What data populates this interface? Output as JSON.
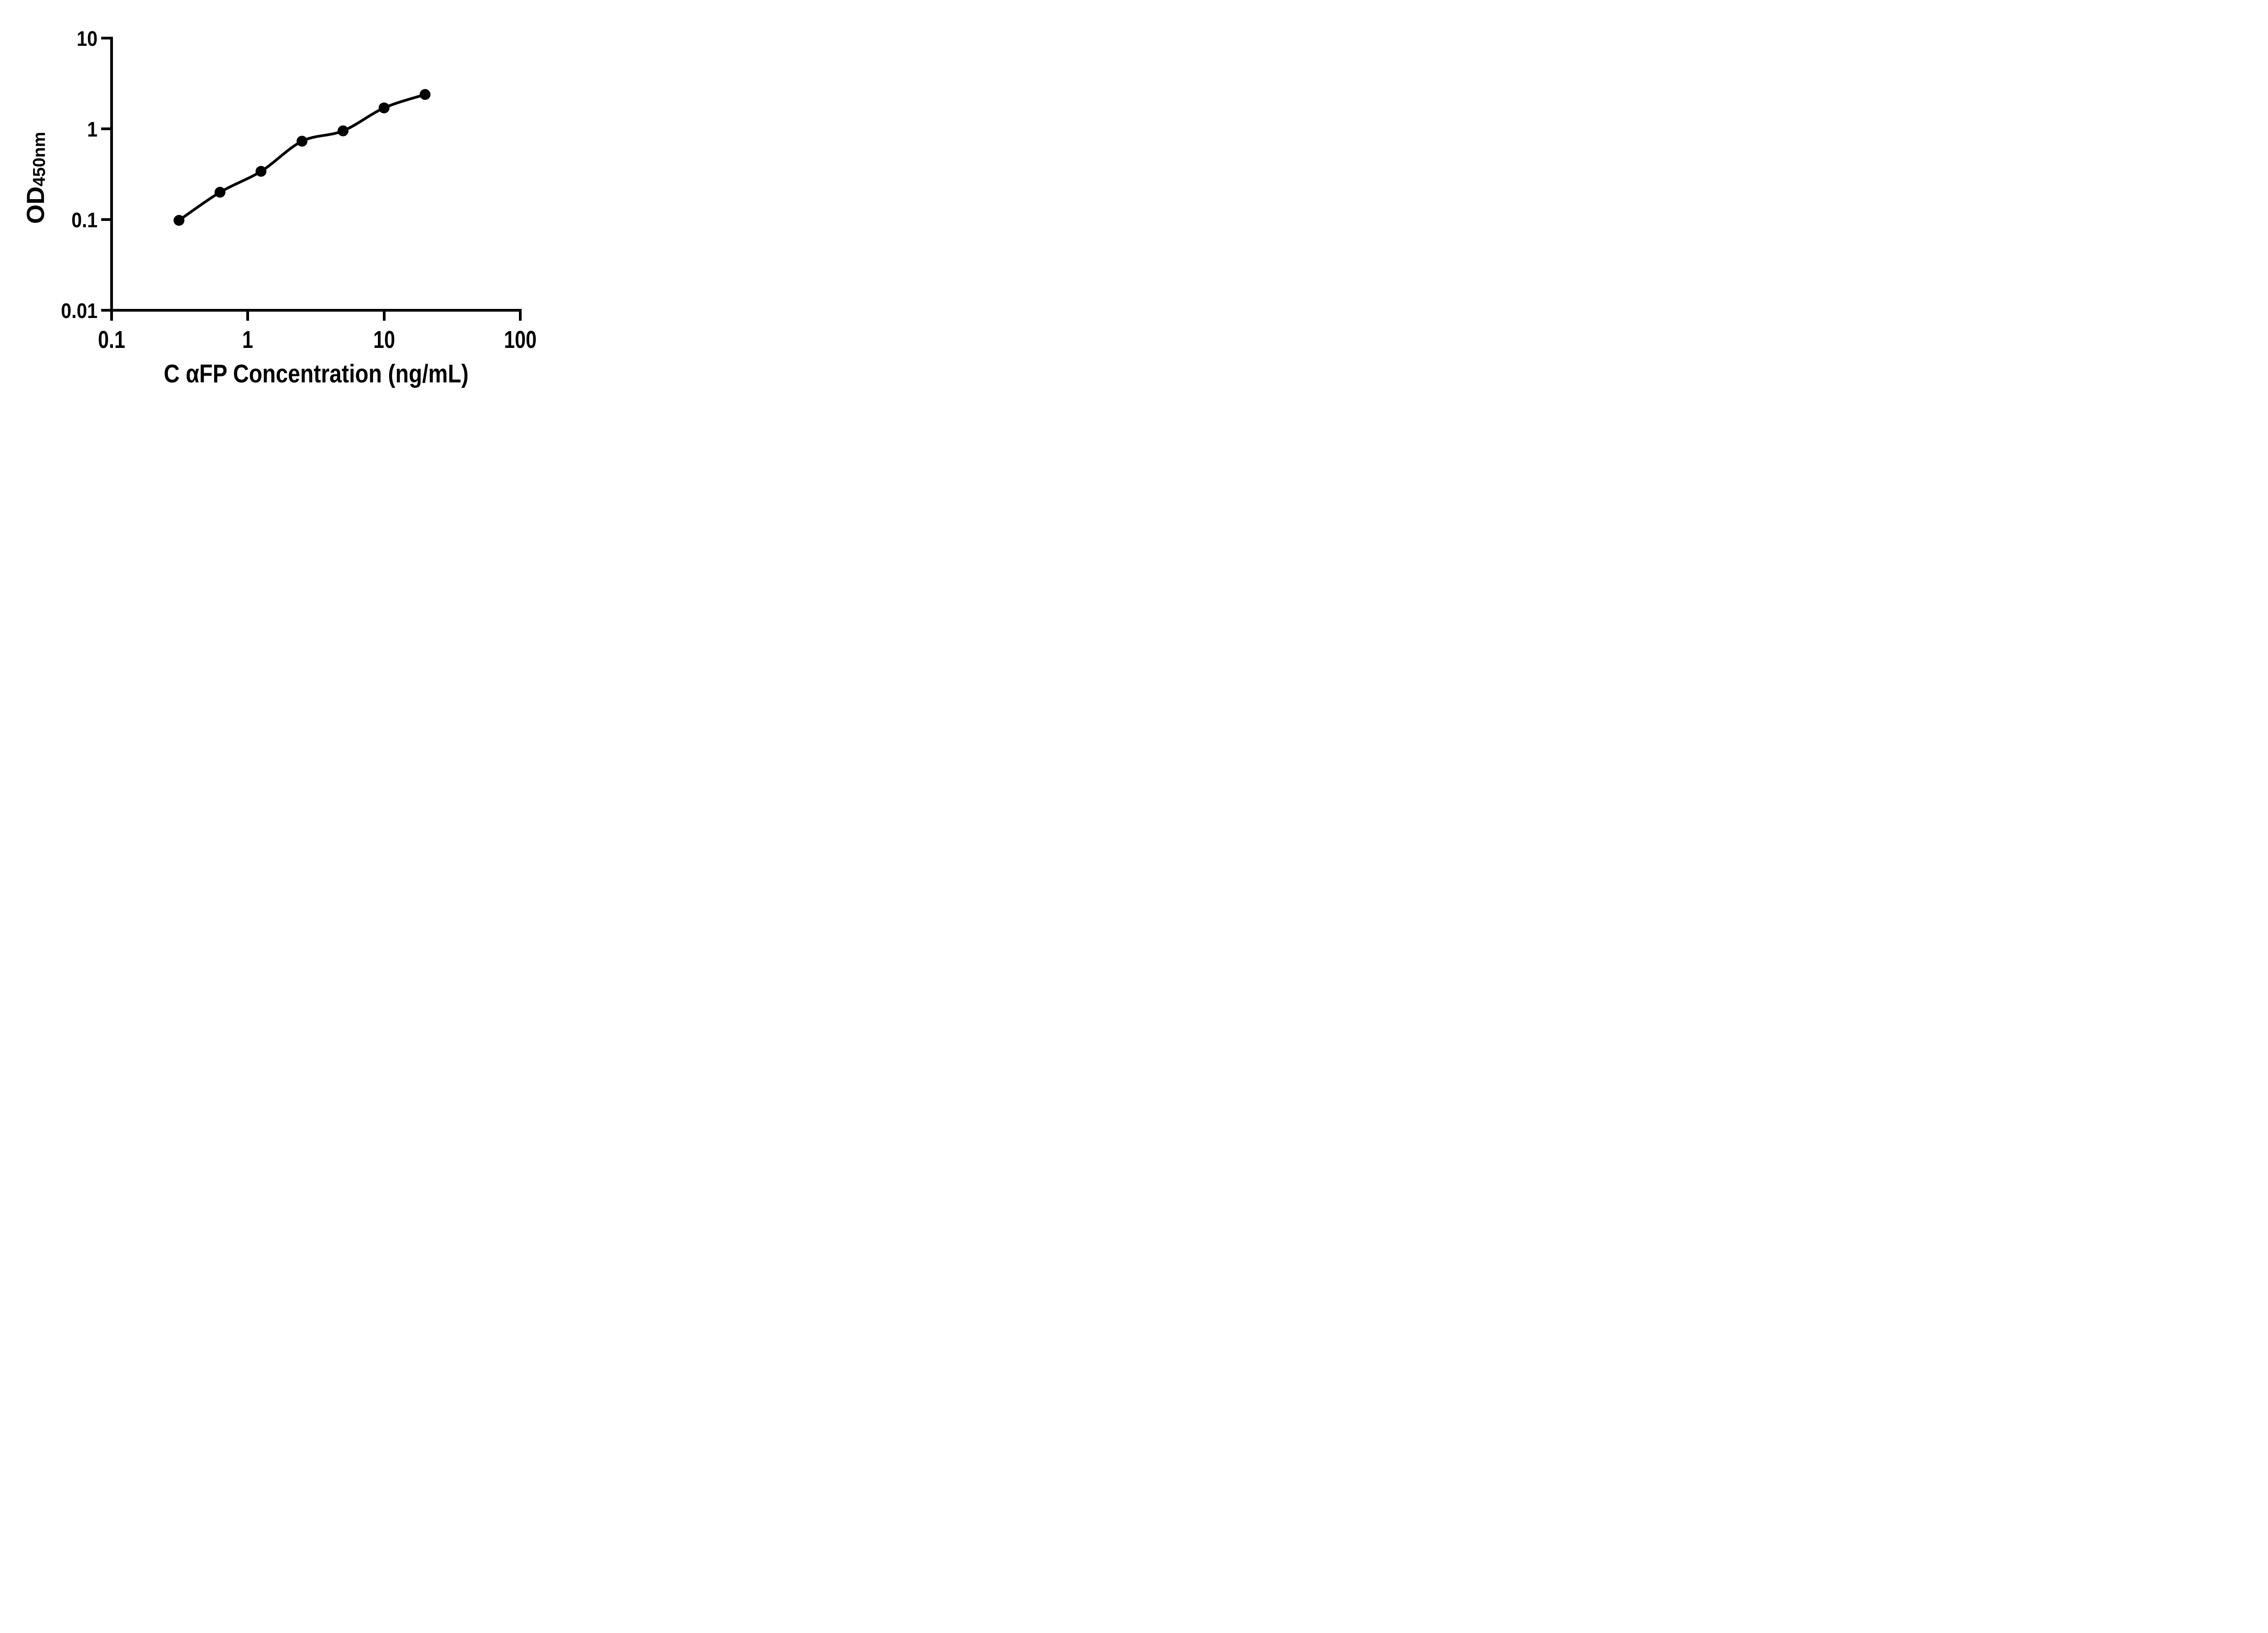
{
  "chart_data": {
    "type": "scatter",
    "title": "",
    "xlabel": "C αFP Concentration (ng/mL)",
    "ylabel": "OD450nm",
    "x": [
      0.3125,
      0.625,
      1.25,
      2.5,
      5,
      10,
      20
    ],
    "y": [
      0.098,
      0.2,
      0.34,
      0.73,
      0.95,
      1.7,
      2.39
    ],
    "x_scale": "log",
    "y_scale": "log",
    "xlim": [
      0.1,
      100
    ],
    "ylim": [
      0.01,
      10
    ],
    "x_tick_values": [
      0.1,
      1,
      10,
      100
    ],
    "x_tick_labels": [
      "0.1",
      "1",
      "10",
      "100"
    ],
    "y_tick_values": [
      10,
      1,
      0.1,
      0.01
    ],
    "y_tick_labels": [
      "10",
      "1",
      "0.1",
      "0.01"
    ],
    "grid": false,
    "legend": false,
    "marker": "filled-circle",
    "curve": "smooth-fit-through-points"
  },
  "axes": {
    "y": {
      "label_main": "OD",
      "label_sub": "450nm"
    },
    "x": {
      "title": "C αFP Concentration (ng/mL)"
    }
  },
  "colors": {
    "foreground": "#000000",
    "background": "#ffffff"
  }
}
